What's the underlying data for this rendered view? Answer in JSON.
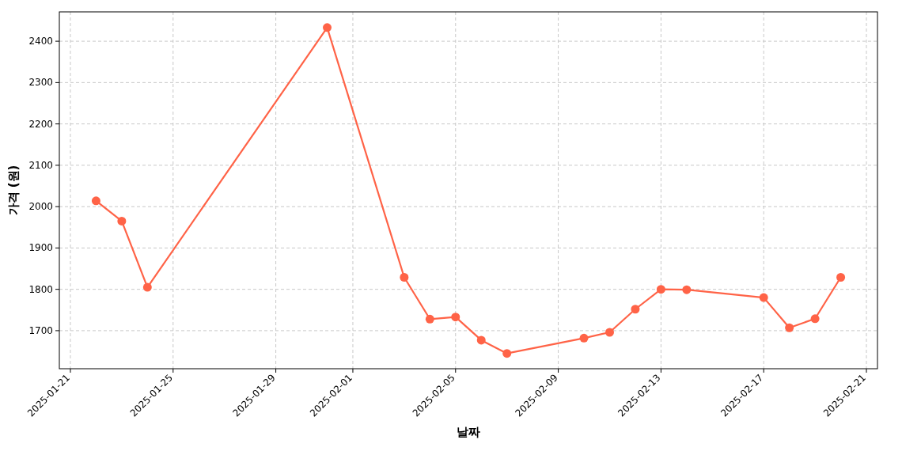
{
  "chart_data": {
    "type": "line",
    "xlabel": "날짜",
    "ylabel": "가격 (원)",
    "x": [
      "2025-01-22",
      "2025-01-23",
      "2025-01-24",
      "2025-01-31",
      "2025-02-03",
      "2025-02-04",
      "2025-02-05",
      "2025-02-06",
      "2025-02-07",
      "2025-02-10",
      "2025-02-11",
      "2025-02-12",
      "2025-02-13",
      "2025-02-14",
      "2025-02-17",
      "2025-02-18",
      "2025-02-19",
      "2025-02-20"
    ],
    "series": [
      {
        "color": "#ff6347",
        "values": [
          2014,
          1965,
          1805,
          2433,
          1829,
          1728,
          1733,
          1677,
          1645,
          1682,
          1696,
          1752,
          1800,
          1799,
          1780,
          1707,
          1729,
          1829
        ]
      }
    ],
    "xlim": [
      "2025-01-20T13:40",
      "2025-02-21T10:20"
    ],
    "ylim": [
      1608,
      2471
    ],
    "xticks": [
      "2025-01-21",
      "2025-01-25",
      "2025-01-29",
      "2025-02-01",
      "2025-02-05",
      "2025-02-09",
      "2025-02-13",
      "2025-02-17",
      "2025-02-21"
    ],
    "yticks": [
      1700,
      1800,
      1900,
      2000,
      2100,
      2200,
      2300,
      2400
    ],
    "grid": true,
    "marker": "circle",
    "line_style": "solid"
  }
}
